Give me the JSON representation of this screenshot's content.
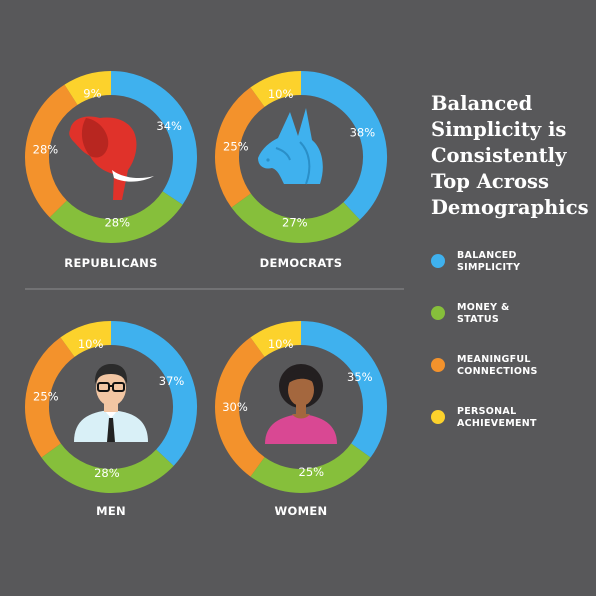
{
  "title_lines": [
    "Balanced",
    "Simplicity is",
    "Consistently",
    "Top Across",
    "Demographics"
  ],
  "colors": {
    "background": "#58585a",
    "balanced_simplicity": "#3fb1ee",
    "money_status": "#86bf3b",
    "meaningful_connections": "#f3922c",
    "personal_achievement": "#fcd22c",
    "divider": "#8c8c8e"
  },
  "legend": [
    {
      "lines": [
        "BALANCED",
        "SIMPLICITY"
      ],
      "color": "#3fb1ee"
    },
    {
      "lines": [
        "MONEY &",
        "STATUS"
      ],
      "color": "#86bf3b"
    },
    {
      "lines": [
        "MEANINGFUL",
        "CONNECTIONS"
      ],
      "color": "#f3922c"
    },
    {
      "lines": [
        "PERSONAL",
        "ACHIEVEMENT"
      ],
      "color": "#fcd22c"
    }
  ],
  "chart_data": [
    {
      "type": "pie",
      "label": "REPUBLICANS",
      "icon": "elephant-icon",
      "categories": [
        "BALANCED SIMPLICITY",
        "MONEY & STATUS",
        "MEANINGFUL CONNECTIONS",
        "PERSONAL ACHIEVEMENT"
      ],
      "values": [
        34,
        28,
        28,
        9
      ],
      "value_labels": [
        "34%",
        "28%",
        "28%",
        "9%"
      ]
    },
    {
      "type": "pie",
      "label": "DEMOCRATS",
      "icon": "donkey-icon",
      "categories": [
        "BALANCED SIMPLICITY",
        "MONEY & STATUS",
        "MEANINGFUL CONNECTIONS",
        "PERSONAL ACHIEVEMENT"
      ],
      "values": [
        38,
        27,
        25,
        10
      ],
      "value_labels": [
        "38%",
        "27%",
        "25%",
        "10%"
      ]
    },
    {
      "type": "pie",
      "label": "MEN",
      "icon": "man-icon",
      "categories": [
        "BALANCED SIMPLICITY",
        "MONEY & STATUS",
        "MEANINGFUL CONNECTIONS",
        "PERSONAL ACHIEVEMENT"
      ],
      "values": [
        37,
        28,
        25,
        10
      ],
      "value_labels": [
        "37%",
        "28%",
        "25%",
        "10%"
      ]
    },
    {
      "type": "pie",
      "label": "WOMEN",
      "icon": "woman-icon",
      "categories": [
        "BALANCED SIMPLICITY",
        "MONEY & STATUS",
        "MEANINGFUL CONNECTIONS",
        "PERSONAL ACHIEVEMENT"
      ],
      "values": [
        35,
        25,
        30,
        10
      ],
      "value_labels": [
        "35%",
        "25%",
        "30%",
        "10%"
      ]
    }
  ]
}
